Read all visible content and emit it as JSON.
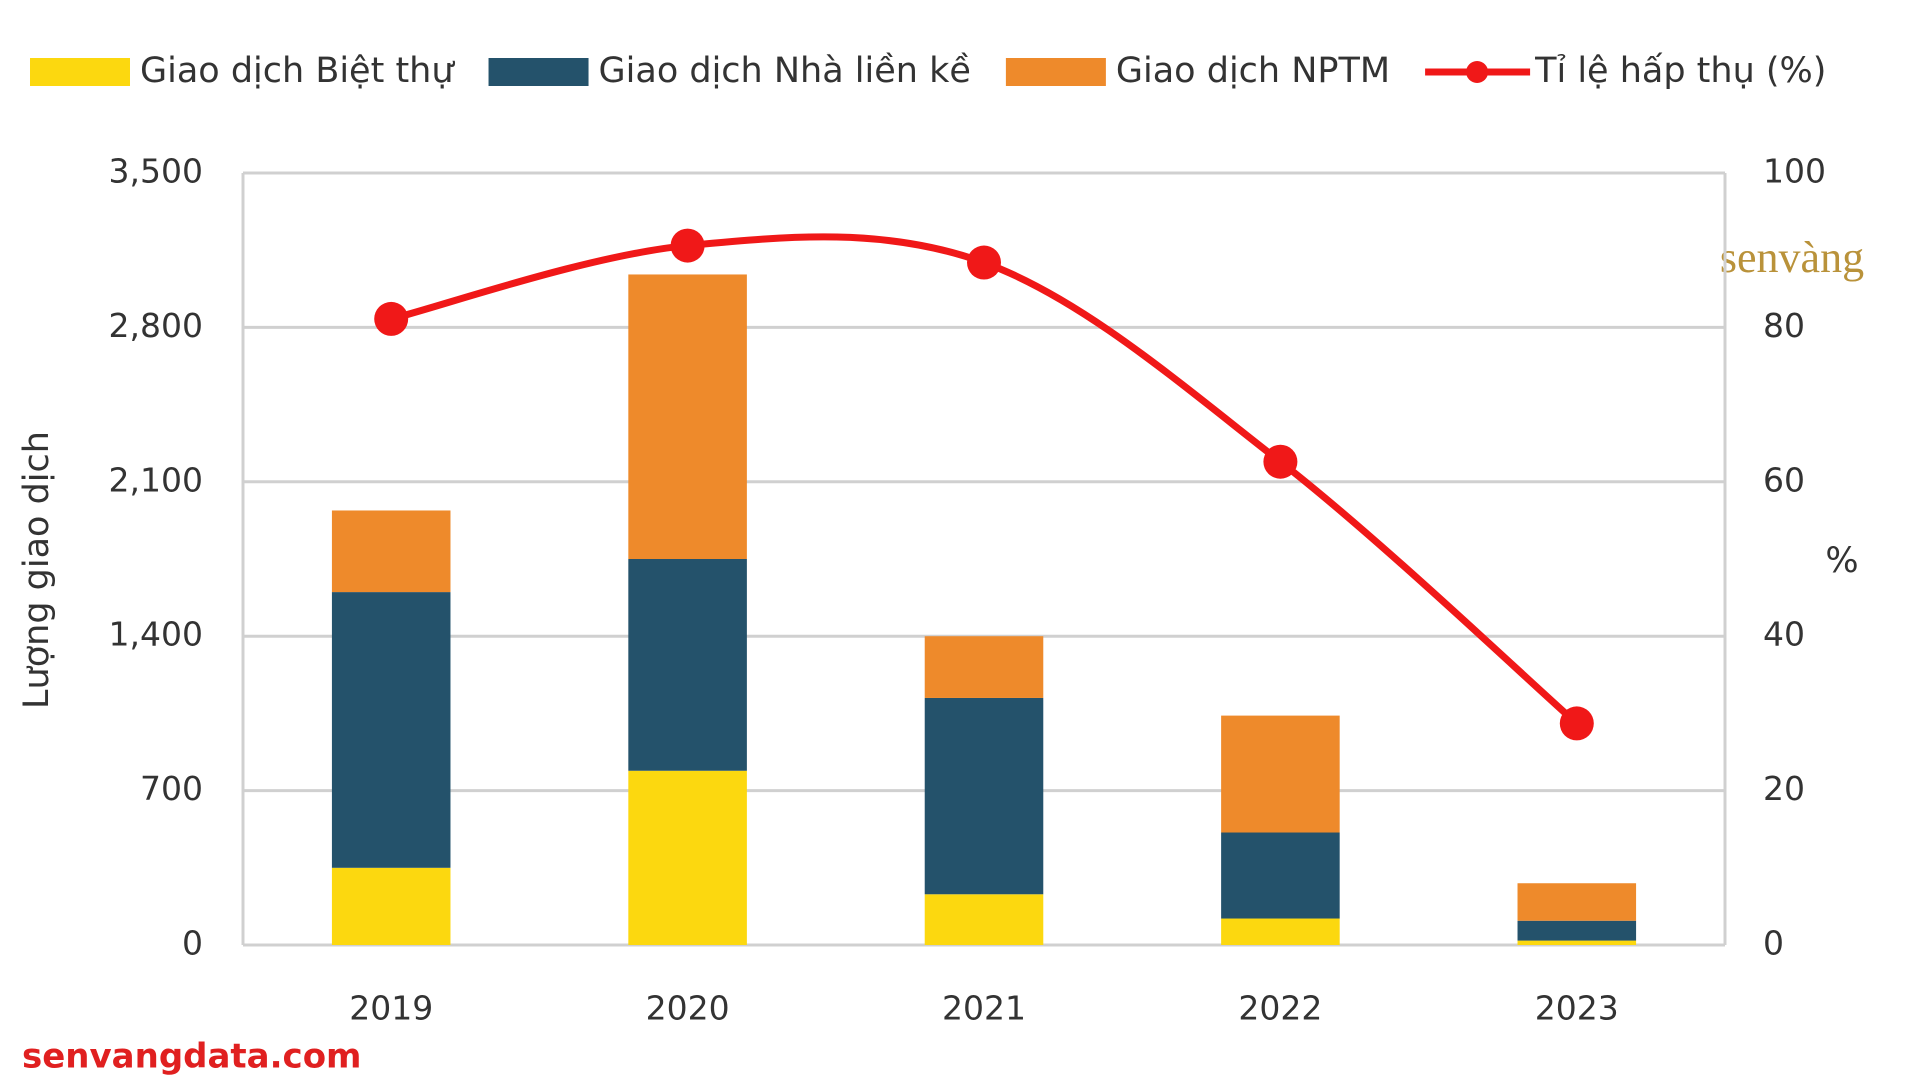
{
  "chart_data": {
    "type": "bar",
    "categories": [
      "2019",
      "2020",
      "2021",
      "2022",
      "2023"
    ],
    "series": [
      {
        "name": "Giao dịch Biệt thự",
        "color": "#fcd80f",
        "values": [
          350,
          790,
          230,
          120,
          20
        ]
      },
      {
        "name": "Giao dịch Nhà liền kề",
        "color": "#24526b",
        "values": [
          1250,
          960,
          890,
          390,
          90
        ]
      },
      {
        "name": "Giao dịch NPTM",
        "color": "#ee8a2b",
        "values": [
          370,
          1290,
          280,
          530,
          170
        ]
      },
      {
        "name": "Tỉ lệ hấp thụ (%)",
        "color": "#f01818",
        "type": "line",
        "axis": "y2",
        "values": [
          81.1,
          90.6,
          88.4,
          62.6,
          28.7
        ]
      }
    ],
    "stacked": true,
    "y_label": "Lượng giao dịch",
    "y2_label": "%",
    "ylim": [
      0,
      3500
    ],
    "yticks": [
      0,
      700,
      {
        "value": 1400,
        "label": "1,400"
      },
      {
        "value": 2100,
        "label": "2,100"
      },
      {
        "value": 2800,
        "label": "2,800"
      },
      {
        "value": 3500,
        "label": "3,500"
      }
    ],
    "y2lim": [
      0,
      100
    ],
    "y2ticks": [
      0,
      20,
      40,
      60,
      80,
      100
    ],
    "grid": true,
    "legend": "top",
    "watermark": "senvàng",
    "source": "senvangdata.com"
  }
}
